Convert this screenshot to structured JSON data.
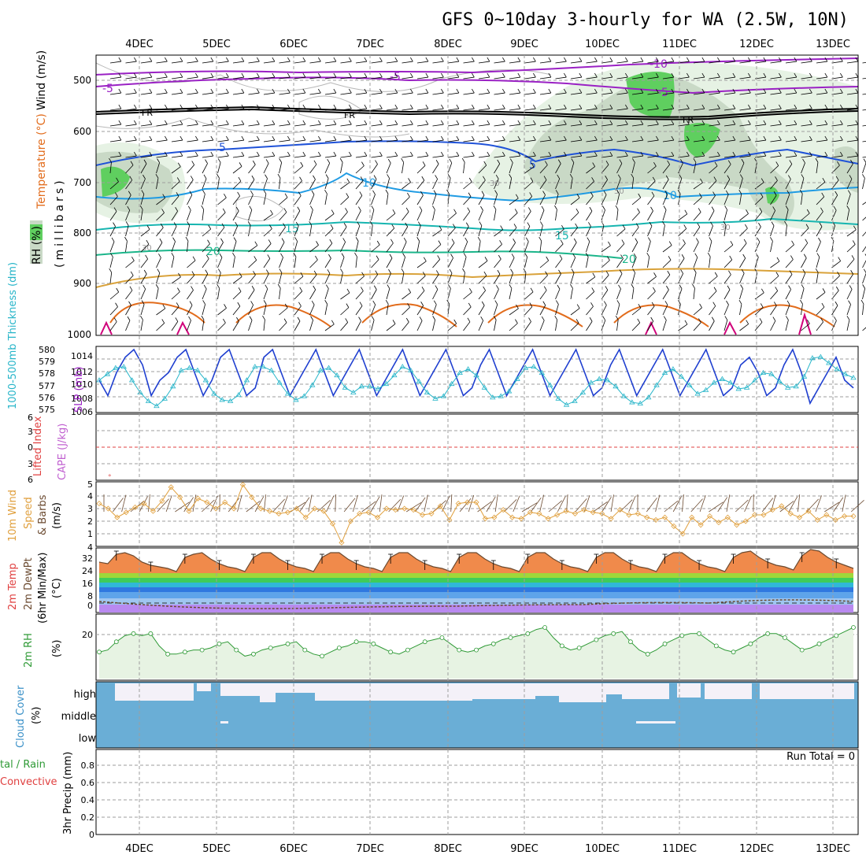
{
  "title": "GFS 0~10day 3-hourly for WA (2.5W, 10N)",
  "days": [
    "4DEC",
    "5DEC",
    "6DEC",
    "7DEC",
    "8DEC",
    "9DEC",
    "10DEC",
    "11DEC",
    "12DEC",
    "13DEC"
  ],
  "colors": {
    "rh_light": "#e6f2e4",
    "rh_mid": "#c9d9c6",
    "rh_dark": "#5fcf5f",
    "t_minus10": "#9a21c4",
    "t_fr": "#000000",
    "t_5": "#1f52d8",
    "t_10": "#1f9be3",
    "t_15": "#17b5b0",
    "t_20": "#1bb58a",
    "t_warm": "#d9a23a",
    "t_hot": "#e26c1c",
    "t_magenta": "#d0007a",
    "slp": "#1f3fd0",
    "thickness": "#27b5c9",
    "wind_speed": "#e0a03e",
    "rh2m": "#2f9a36",
    "cloud": "#6aaed6",
    "cloud_gap": "#f4f1f8",
    "temp_fill": "#f08a4b",
    "grid": "#9e9e9e"
  },
  "panels": {
    "upper": {
      "ylabel_rh": "RH (%)",
      "ylabel_temp": "Temperature (°C)",
      "ylabel_wind": "Wind (m/s)",
      "ylabel_mb": "(millibars)",
      "pressure_ticks": [
        "500",
        "600",
        "700",
        "800",
        "900",
        "1000"
      ],
      "contour_labels": [
        "-10",
        "-5",
        "-5",
        "-5",
        "FR",
        "FR",
        "FR",
        "5",
        "5",
        "10",
        "10",
        "15",
        "15",
        "20",
        "20",
        "30",
        "30",
        "50",
        "30"
      ]
    },
    "slp": {
      "ylabel_thickness": "1000-500mb Thickness (dm)",
      "ylabel_slp": "SLP (mb)",
      "thickness_ticks": [
        "575",
        "576",
        "577",
        "578",
        "579",
        "580"
      ],
      "slp_ticks": [
        "1006",
        "1008",
        "1010",
        "1012",
        "1014"
      ]
    },
    "cape": {
      "ylabel_li": "Lifted Index",
      "ylabel_cape": "CAPE (J/kg)",
      "ticks": [
        "6",
        "3",
        "0",
        "3",
        "6"
      ]
    },
    "wind10": {
      "ylabel_1": "10m Wind",
      "ylabel_2": "Speed",
      "ylabel_3": "& Barbs",
      "ylabel_unit": "(m/s)",
      "ticks": [
        "4",
        "5",
        "4",
        "3",
        "2",
        "1"
      ]
    },
    "temp2m": {
      "ylabel_1": "2m Temp",
      "ylabel_2": "2m DewPt",
      "ylabel_3": "(6hr Min/Max)",
      "ylabel_unit": "(°C)",
      "ticks": [
        "32",
        "24",
        "16",
        "8",
        "0"
      ]
    },
    "rh2m": {
      "ylabel": "2m RH",
      "ylabel_unit": "(%)",
      "ticks": [
        "20"
      ]
    },
    "cloud": {
      "ylabel": "Cloud Cover",
      "ylabel_unit": "(%)",
      "levels": [
        "high",
        "middle",
        "low"
      ]
    },
    "precip": {
      "ylabel_total": "tal / Rain",
      "ylabel_conv": "Convective",
      "ylabel_main": "3hr Precip (mm)",
      "ticks": [
        "0.8",
        "0.6",
        "0.4",
        "0.2",
        "0"
      ],
      "run_total": "Run Total = 0"
    }
  },
  "chart_data": [
    {
      "type": "line",
      "name": "SLP",
      "ylim": [
        1006,
        1014
      ],
      "values": [
        1010,
        1008,
        1011,
        1013,
        1014,
        1012,
        1008,
        1010,
        1011,
        1013,
        1014,
        1011,
        1008,
        1010,
        1013,
        1014,
        1011,
        1008,
        1009,
        1013,
        1014,
        1011,
        1008,
        1010,
        1012,
        1014,
        1011,
        1008,
        1010,
        1012,
        1014,
        1011,
        1008,
        1010,
        1012,
        1014,
        1011,
        1008,
        1010,
        1012,
        1014,
        1011,
        1008,
        1009,
        1012,
        1014,
        1011,
        1008,
        1010,
        1012,
        1014,
        1011,
        1008,
        1010,
        1012,
        1014,
        1011,
        1008,
        1009,
        1012,
        1014,
        1011,
        1008,
        1010,
        1012,
        1014,
        1011,
        1008,
        1010,
        1012,
        1014,
        1011,
        1008,
        1009,
        1012,
        1013,
        1011,
        1008,
        1009,
        1012,
        1014,
        1011,
        1007,
        1009,
        1011,
        1013,
        1010,
        1009
      ]
    },
    {
      "type": "line",
      "name": "Thickness",
      "ylim": [
        575,
        580
      ],
      "values": [
        577.5,
        578,
        578.5,
        578.6,
        577.5,
        576.5,
        575.8,
        575.4,
        576,
        577,
        578.3,
        578.5,
        578.3,
        577.5,
        576.4,
        575.9,
        575.8,
        576.3,
        577.5,
        578.6,
        578.6,
        578.3,
        577.3,
        576.4,
        575.9,
        576.2,
        577.1,
        578.3,
        578.5,
        577.9,
        576.9,
        576.5,
        577,
        577,
        576.8,
        577.2,
        577.9,
        578.6,
        578.3,
        577.4,
        576.5,
        576,
        576.2,
        577.2,
        578.1,
        578.4,
        577.9,
        576.9,
        576.1,
        576.2,
        576.6,
        577.6,
        578.5,
        578.6,
        578.1,
        577.1,
        576,
        575.5,
        575.8,
        576.5,
        577.3,
        577.6,
        577.5,
        577,
        576.2,
        575.7,
        575.6,
        576.1,
        577.1,
        578.1,
        578.4,
        577.8,
        577.1,
        576.4,
        576.7,
        577.3,
        577.6,
        577.3,
        576.8,
        576.9,
        577.5,
        578.1,
        578,
        577.4,
        576.9,
        577,
        577.8,
        579.3,
        579.4,
        578.9,
        578.4,
        578,
        577.7
      ]
    },
    {
      "type": "line",
      "name": "10m Wind Speed",
      "ylim": [
        0,
        5
      ],
      "values": [
        3.4,
        3.0,
        2.3,
        2.7,
        3.1,
        3.4,
        2.8,
        3.6,
        4.7,
        3.9,
        2.8,
        3.8,
        3.5,
        3.0,
        3.5,
        3.0,
        4.9,
        3.9,
        3.0,
        2.8,
        2.6,
        2.7,
        3.0,
        2.3,
        3.0,
        2.8,
        1.8,
        0.3,
        2.0,
        2.6,
        2.7,
        2.3,
        3.0,
        2.9,
        3.0,
        2.9,
        2.5,
        2.6,
        3.2,
        2.1,
        3.4,
        3.5,
        3.5,
        2.2,
        2.3,
        2.9,
        2.3,
        2.2,
        2.7,
        2.6,
        2.2,
        2.5,
        2.8,
        2.6,
        2.9,
        2.7,
        2.6,
        2.2,
        2.9,
        2.5,
        2.6,
        2.3,
        2.1,
        2.3,
        1.6,
        1.0,
        2.3,
        1.7,
        2.4,
        1.9,
        2.3,
        1.7,
        2.0,
        2.5,
        2.5,
        2.9,
        3.2,
        2.6,
        2.3,
        2.8,
        2.1,
        2.5,
        2.1,
        2.4,
        2.4
      ]
    },
    {
      "type": "area",
      "name": "2m Temp",
      "ylim": [
        -4,
        36
      ],
      "values": [
        28,
        27,
        33,
        34,
        32,
        28,
        26,
        25,
        24,
        22,
        31,
        33,
        34,
        30,
        27,
        25,
        24,
        22,
        31,
        34,
        34,
        30,
        27,
        25,
        24,
        22,
        31,
        34,
        34,
        30,
        27,
        25,
        24,
        22,
        31,
        34,
        34,
        30,
        27,
        25,
        24,
        22,
        31,
        34,
        34,
        30,
        27,
        25,
        24,
        22,
        31,
        34,
        34,
        30,
        27,
        25,
        24,
        22,
        31,
        34,
        34,
        30,
        27,
        25,
        24,
        22,
        31,
        34,
        34,
        30,
        27,
        25,
        24,
        22,
        31,
        34,
        35,
        31,
        28,
        26,
        25,
        23,
        32,
        36,
        35,
        31,
        28,
        26,
        24
      ]
    },
    {
      "type": "line",
      "name": "2m RH",
      "ylim": [
        0,
        30
      ],
      "values": [
        13,
        14,
        18,
        21,
        22,
        21,
        22,
        16,
        12,
        12,
        13,
        14,
        14,
        15,
        17,
        18,
        14,
        11,
        12,
        14,
        15,
        16,
        17,
        18,
        14,
        12,
        11,
        13,
        15,
        16,
        18,
        18,
        17,
        15,
        13,
        12,
        14,
        16,
        18,
        19,
        20,
        17,
        14,
        13,
        14,
        16,
        17,
        19,
        20,
        21,
        22,
        24,
        25,
        20,
        16,
        14,
        15,
        17,
        19,
        21,
        22,
        23,
        18,
        14,
        12,
        14,
        17,
        19,
        21,
        22,
        22,
        19,
        16,
        14,
        13,
        15,
        17,
        20,
        22,
        22,
        20,
        17,
        14,
        15,
        17,
        19,
        21,
        23,
        25
      ]
    },
    {
      "type": "bar",
      "name": "3hr Precip",
      "ylim": [
        0,
        1
      ],
      "values": []
    }
  ]
}
